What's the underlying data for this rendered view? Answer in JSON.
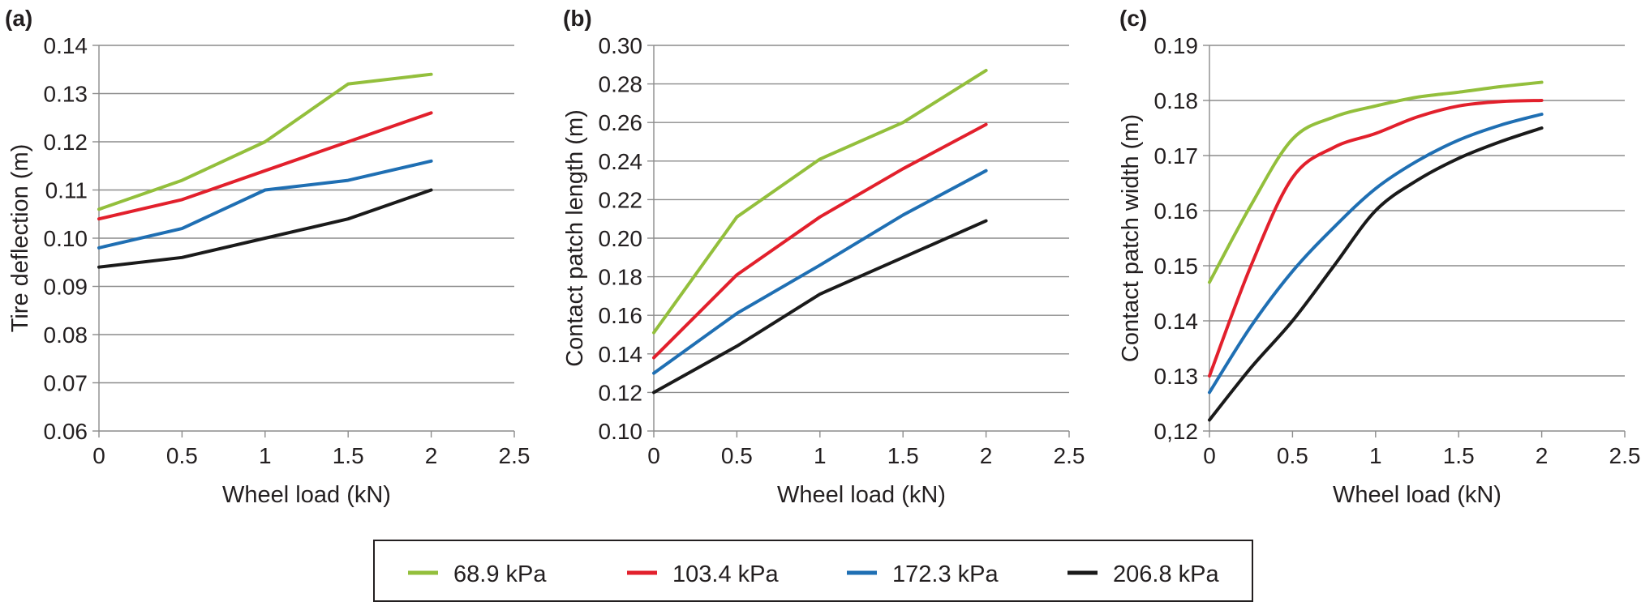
{
  "legend": [
    {
      "label": "68.9 kPa",
      "color": "#93bf3c"
    },
    {
      "label": "103.4 kPa",
      "color": "#e2202c"
    },
    {
      "label": "172.3 kPa",
      "color": "#1f6fb3"
    },
    {
      "label": "206.8 kPa",
      "color": "#1a1a1a"
    }
  ],
  "chart_data": [
    {
      "type": "line",
      "panel": "(a)",
      "xlabel": "Wheel load (kN)",
      "ylabel": "Tire deflection (m)",
      "xlim": [
        0,
        2.5
      ],
      "ylim": [
        0.06,
        0.14
      ],
      "xticks": [
        "0",
        "0.5",
        "1",
        "1.5",
        "2",
        "2.5"
      ],
      "yticks": [
        "0.06",
        "0.07",
        "0.08",
        "0.09",
        "0.10",
        "0.11",
        "0.12",
        "0.13",
        "0.14"
      ],
      "grid": true,
      "smooth": false,
      "x": [
        0,
        0.5,
        1,
        1.5,
        2
      ],
      "series": [
        {
          "name": "68.9 kPa",
          "values": [
            0.106,
            0.112,
            0.12,
            0.132,
            0.134
          ]
        },
        {
          "name": "103.4 kPa",
          "values": [
            0.104,
            0.108,
            0.114,
            0.12,
            0.126
          ]
        },
        {
          "name": "172.3 kPa",
          "values": [
            0.098,
            0.102,
            0.11,
            0.112,
            0.116
          ]
        },
        {
          "name": "206.8 kPa",
          "values": [
            0.094,
            0.096,
            0.1,
            0.104,
            0.11
          ]
        }
      ]
    },
    {
      "type": "line",
      "panel": "(b)",
      "xlabel": "Wheel load (kN)",
      "ylabel": "Contact patch length (m)",
      "xlim": [
        0,
        2.5
      ],
      "ylim": [
        0.1,
        0.3
      ],
      "xticks": [
        "0",
        "0.5",
        "1",
        "1.5",
        "2",
        "2.5"
      ],
      "yticks": [
        "0.10",
        "0.12",
        "0.14",
        "0.16",
        "0.18",
        "0.20",
        "0.22",
        "0.24",
        "0.26",
        "0.28",
        "0.30"
      ],
      "grid": true,
      "smooth": false,
      "x": [
        0,
        0.5,
        1,
        1.5,
        2
      ],
      "series": [
        {
          "name": "68.9 kPa",
          "values": [
            0.151,
            0.211,
            0.241,
            0.26,
            0.287
          ]
        },
        {
          "name": "103.4 kPa",
          "values": [
            0.138,
            0.181,
            0.211,
            0.236,
            0.259
          ]
        },
        {
          "name": "172.3 kPa",
          "values": [
            0.13,
            0.161,
            0.186,
            0.212,
            0.235
          ]
        },
        {
          "name": "206.8 kPa",
          "values": [
            0.12,
            0.144,
            0.171,
            0.19,
            0.209
          ]
        }
      ]
    },
    {
      "type": "line",
      "panel": "(c)",
      "xlabel": "Wheel load (kN)",
      "ylabel": "Contact patch width (m)",
      "xlim": [
        0,
        2.5
      ],
      "ylim": [
        0.12,
        0.19
      ],
      "xticks": [
        "0",
        "0.5",
        "1",
        "1.5",
        "2",
        "2.5"
      ],
      "yticks": [
        "0,12",
        "0.13",
        "0.14",
        "0.15",
        "0.16",
        "0.17",
        "0.18",
        "0.19"
      ],
      "grid": true,
      "smooth": true,
      "x": [
        0,
        0.25,
        0.5,
        0.75,
        1,
        1.25,
        1.5,
        1.75,
        2
      ],
      "series": [
        {
          "name": "68.9 kPa",
          "values": [
            0.147,
            0.161,
            0.173,
            0.177,
            0.179,
            0.1806,
            0.1815,
            0.1825,
            0.1833
          ]
        },
        {
          "name": "103.4 kPa",
          "values": [
            0.13,
            0.15,
            0.166,
            0.1715,
            0.174,
            0.177,
            0.179,
            0.1798,
            0.18
          ]
        },
        {
          "name": "172.3 kPa",
          "values": [
            0.127,
            0.139,
            0.149,
            0.157,
            0.164,
            0.169,
            0.1728,
            0.1755,
            0.1775
          ]
        },
        {
          "name": "206.8 kPa",
          "values": [
            0.122,
            0.1315,
            0.14,
            0.15,
            0.16,
            0.1655,
            0.1695,
            0.1725,
            0.175
          ]
        }
      ]
    }
  ]
}
